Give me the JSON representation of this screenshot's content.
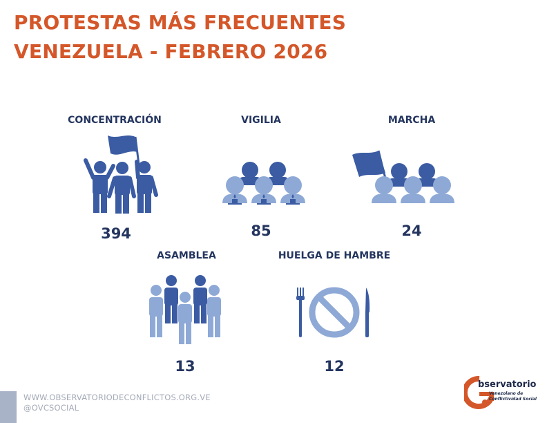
{
  "title": {
    "line1": "PROTESTAS MÁS FRECUENTES",
    "line2": "VENEZUELA - FEBRERO 2026"
  },
  "categories": [
    {
      "label": "CONCENTRACIÓN",
      "value": "394",
      "icon": "protest-crowd-icon"
    },
    {
      "label": "VIGILIA",
      "value": "85",
      "icon": "candle-vigil-icon"
    },
    {
      "label": "MARCHA",
      "value": "24",
      "icon": "march-flag-icon"
    },
    {
      "label": "ASAMBLEA",
      "value": "13",
      "icon": "assembly-people-icon"
    },
    {
      "label": "HUELGA DE HAMBRE",
      "value": "12",
      "icon": "no-food-icon"
    }
  ],
  "footer": {
    "website": "WWW.OBSERVATORIODECONFLICTOS.ORG.VE",
    "social": "@OVCSOCIAL"
  },
  "logo": {
    "title": "bservatorio",
    "line1": "Venezolano de",
    "line2": "Conflictividad Social"
  },
  "colors": {
    "title": "#d4572a",
    "dark_blue": "#3b5ca3",
    "light_blue": "#8ea9d6",
    "label": "#24355f"
  }
}
